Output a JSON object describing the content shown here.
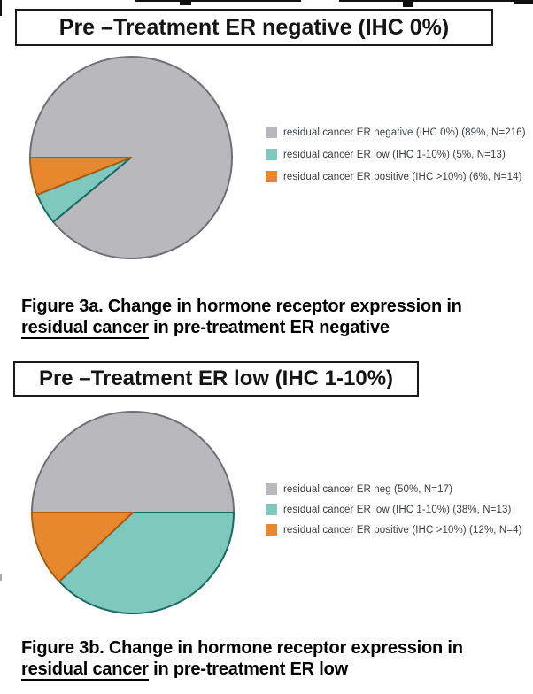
{
  "colors": {
    "gray": "#b9b9bd",
    "teal": "#7ec8be",
    "orange": "#e8882e",
    "legend_text": "#3b3e42"
  },
  "chart_data": [
    {
      "type": "pie",
      "figure_id": "3a",
      "title": "Pre –Treatment ER negative (IHC 0%)",
      "start_angle_deg": 270,
      "direction": "clockwise",
      "legend_position": "right",
      "slices": [
        {
          "label": "residual cancer ER negative (IHC 0%) (89%, N=216)",
          "value": 89,
          "n": 216,
          "color": "#b9b9bd",
          "stroke": "#707075"
        },
        {
          "label": "residual cancer ER low (IHC 1-10%) (5%, N=13)",
          "value": 5,
          "n": 13,
          "color": "#7ec8be",
          "stroke": "#1b6b63"
        },
        {
          "label": "residual cancer ER positive (IHC >10%) (6%, N=14)",
          "value": 6,
          "n": 14,
          "color": "#e8882e",
          "stroke": "#a45e15"
        }
      ],
      "caption": {
        "line1": "Figure 3a. Change in hormone receptor expression in",
        "underlined": "residual cancer",
        "line2_rest": " in pre-treatment ER negative"
      }
    },
    {
      "type": "pie",
      "figure_id": "3b",
      "title": "Pre –Treatment ER low (IHC 1-10%)",
      "start_angle_deg": 270,
      "direction": "clockwise",
      "legend_position": "right",
      "slices": [
        {
          "label": "residual cancer ER neg (50%, N=17)",
          "value": 50,
          "n": 17,
          "color": "#b9b9bd",
          "stroke": "#707075"
        },
        {
          "label": "residual cancer ER low (IHC 1-10%) (38%, N=13)",
          "value": 38,
          "n": 13,
          "color": "#7ec8be",
          "stroke": "#1b6b63"
        },
        {
          "label": "residual cancer ER positive (IHC >10%) (12%, N=4)",
          "value": 12,
          "n": 4,
          "color": "#e8882e",
          "stroke": "#a45e15"
        }
      ],
      "caption": {
        "line1": "Figure 3b. Change in hormone receptor expression in",
        "underlined": "residual cancer",
        "line2_rest": " in pre-treatment ER low"
      }
    }
  ]
}
